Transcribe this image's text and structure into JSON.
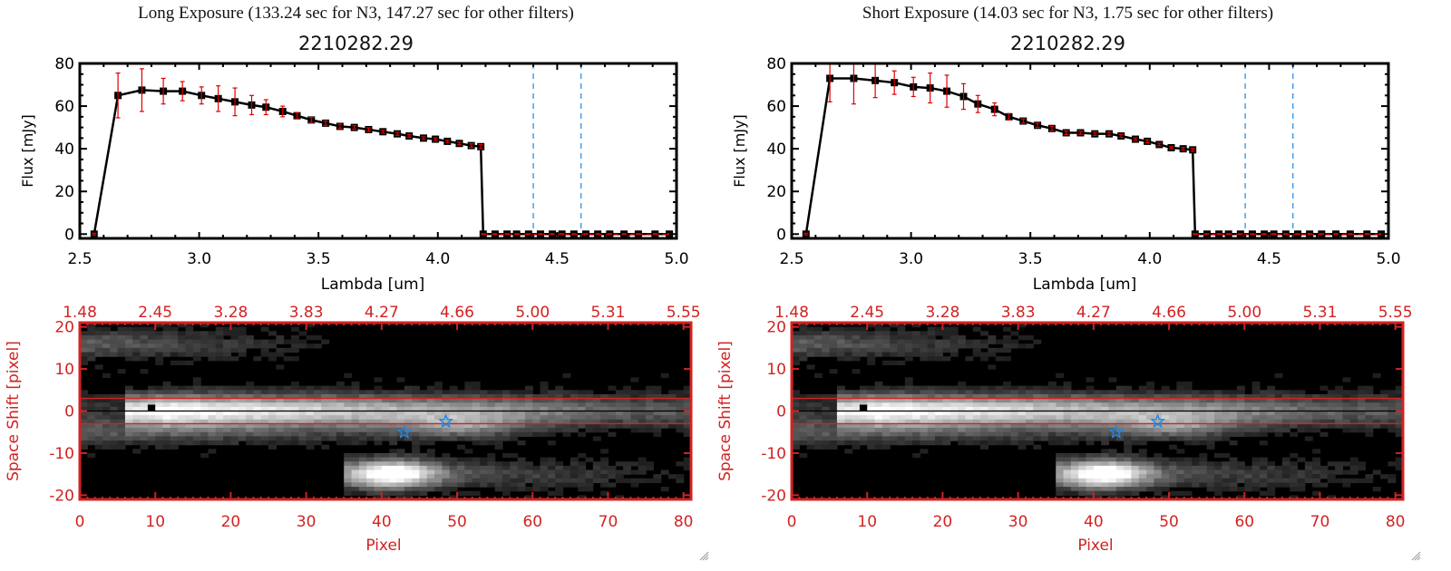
{
  "panels": [
    {
      "exposure_title": "Long Exposure (133.24 sec for N3, 147.27 sec for other filters)",
      "object_title": "2210282.29",
      "chart_data": [
        {
          "type": "line",
          "title": "2210282.29",
          "xlabel": "Lambda [um]",
          "ylabel": "Flux [mJy]",
          "xlim": [
            2.5,
            5.0
          ],
          "ylim": [
            -2,
            80
          ],
          "xticks": [
            "2.5",
            "3.0",
            "3.5",
            "4.0",
            "4.5",
            "5.0"
          ],
          "yticks": [
            "0",
            "20",
            "40",
            "60",
            "80"
          ],
          "xtick_values": [
            2.5,
            3.0,
            3.5,
            4.0,
            4.5,
            5.0
          ],
          "ytick_values": [
            0,
            20,
            40,
            60,
            80
          ],
          "grid": false,
          "series": [
            {
              "name": "flux",
              "color": "#000000",
              "marker": "square",
              "x": [
                2.56,
                2.66,
                2.76,
                2.85,
                2.93,
                3.01,
                3.08,
                3.15,
                3.22,
                3.28,
                3.35,
                3.41,
                3.47,
                3.53,
                3.59,
                3.65,
                3.71,
                3.77,
                3.83,
                3.88,
                3.94,
                3.99,
                4.04,
                4.09,
                4.14,
                4.18,
                4.19,
                4.24,
                4.29,
                4.33,
                4.38,
                4.43,
                4.48,
                4.52,
                4.57,
                4.62,
                4.67,
                4.72,
                4.78,
                4.84,
                4.91,
                4.97
              ],
              "y": [
                0,
                65,
                67.5,
                67,
                67,
                65,
                63.5,
                62,
                60.5,
                59.5,
                57.5,
                55.5,
                53.5,
                52,
                50.5,
                50,
                49,
                48,
                47,
                46,
                45,
                44.5,
                43.5,
                42.5,
                41.5,
                41,
                0,
                0,
                0,
                0,
                0,
                0,
                0,
                0,
                0,
                0,
                0,
                0,
                0,
                0,
                0,
                0
              ],
              "yerr": [
                0.4,
                10.5,
                10,
                6,
                4.5,
                4,
                6,
                6.5,
                4.5,
                3.5,
                2.5,
                1.5,
                1.2,
                1,
                1,
                0.8,
                0.8,
                0.7,
                0.7,
                0.6,
                0.6,
                0.6,
                0.5,
                0.6,
                0.8,
                0.9,
                0.2,
                0.2,
                0.2,
                0.2,
                0.2,
                0.2,
                0.2,
                0.2,
                0.2,
                0.2,
                0.2,
                0.2,
                0.2,
                0.2,
                0.2,
                0.2
              ],
              "errcolor": "#e00000"
            }
          ],
          "vlines": [
            {
              "x": 4.4,
              "color": "#1e88e5",
              "style": "dashed"
            },
            {
              "x": 4.6,
              "color": "#1e88e5",
              "style": "dashed"
            }
          ],
          "hlines": [
            {
              "y": 0,
              "color": "#e00000",
              "style": "dashed",
              "from": 4.19
            }
          ]
        },
        {
          "type": "heatmap",
          "xlabel": "Pixel",
          "ylabel": "Space Shift [pixel]",
          "xlim": [
            0,
            81
          ],
          "ylim": [
            -21,
            21
          ],
          "xticks": [
            "0",
            "10",
            "20",
            "30",
            "40",
            "50",
            "60",
            "70",
            "80"
          ],
          "yticks": [
            "-20",
            "-10",
            "0",
            "10",
            "20"
          ],
          "top_xticks": [
            "1.48",
            "2.45",
            "3.28",
            "3.83",
            "4.27",
            "4.66",
            "5.00",
            "5.31",
            "5.55"
          ],
          "axis_color": "#d32222",
          "aperture_lines": [
            3,
            -3
          ],
          "center_line": 0,
          "stars": [
            {
              "x": 43,
              "y": -5
            },
            {
              "x": 48.5,
              "y": -2.5
            }
          ],
          "star_color": "#1e88e5",
          "colormap": "grayscale"
        }
      ]
    },
    {
      "exposure_title": "Short Exposure (14.03 sec for N3, 1.75 sec for other filters)",
      "object_title": "2210282.29",
      "chart_data": [
        {
          "type": "line",
          "title": "2210282.29",
          "xlabel": "Lambda [um]",
          "ylabel": "Flux [mJy]",
          "xlim": [
            2.5,
            5.0
          ],
          "ylim": [
            -2,
            80
          ],
          "xticks": [
            "2.5",
            "3.0",
            "3.5",
            "4.0",
            "4.5",
            "5.0"
          ],
          "yticks": [
            "0",
            "20",
            "40",
            "60",
            "80"
          ],
          "xtick_values": [
            2.5,
            3.0,
            3.5,
            4.0,
            4.5,
            5.0
          ],
          "ytick_values": [
            0,
            20,
            40,
            60,
            80
          ],
          "grid": false,
          "series": [
            {
              "name": "flux",
              "color": "#000000",
              "marker": "square",
              "x": [
                2.56,
                2.66,
                2.76,
                2.85,
                2.93,
                3.01,
                3.08,
                3.15,
                3.22,
                3.28,
                3.35,
                3.41,
                3.47,
                3.53,
                3.59,
                3.65,
                3.71,
                3.77,
                3.83,
                3.88,
                3.94,
                3.99,
                4.04,
                4.09,
                4.14,
                4.18,
                4.19,
                4.24,
                4.29,
                4.33,
                4.38,
                4.43,
                4.48,
                4.52,
                4.57,
                4.62,
                4.67,
                4.72,
                4.78,
                4.84,
                4.91,
                4.97
              ],
              "y": [
                0,
                73,
                73,
                72,
                71,
                69,
                68.5,
                67,
                64.5,
                61,
                58.5,
                55,
                53,
                51,
                49.5,
                47.5,
                47.5,
                47,
                47,
                46,
                44.5,
                43.5,
                42,
                40.5,
                40,
                39.5,
                0,
                0,
                0,
                0,
                0,
                0,
                0,
                0,
                0,
                0,
                0,
                0,
                0,
                0,
                0,
                0
              ],
              "yerr": [
                0.4,
                11,
                12,
                8,
                5.5,
                4.5,
                7,
                7.5,
                6,
                4,
                3,
                1.5,
                1,
                1,
                1,
                0.8,
                0.7,
                0.7,
                0.7,
                0.7,
                0.6,
                0.7,
                0.6,
                0.5,
                0.6,
                0.7,
                0.2,
                0.2,
                0.2,
                0.2,
                0.2,
                0.2,
                0.2,
                0.2,
                0.2,
                0.2,
                0.2,
                0.2,
                0.2,
                0.2,
                0.2,
                0.2
              ],
              "errcolor": "#e00000"
            }
          ],
          "vlines": [
            {
              "x": 4.4,
              "color": "#1e88e5",
              "style": "dashed"
            },
            {
              "x": 4.6,
              "color": "#1e88e5",
              "style": "dashed"
            }
          ],
          "hlines": [
            {
              "y": 0,
              "color": "#e00000",
              "style": "dashed",
              "from": 4.19
            }
          ]
        },
        {
          "type": "heatmap",
          "xlabel": "Pixel",
          "ylabel": "Space Shift [pixel]",
          "xlim": [
            0,
            81
          ],
          "ylim": [
            -21,
            21
          ],
          "xticks": [
            "0",
            "10",
            "20",
            "30",
            "40",
            "50",
            "60",
            "70",
            "80"
          ],
          "yticks": [
            "-20",
            "-10",
            "0",
            "10",
            "20"
          ],
          "top_xticks": [
            "1.48",
            "2.45",
            "3.28",
            "3.83",
            "4.27",
            "4.66",
            "5.00",
            "5.31",
            "5.55"
          ],
          "axis_color": "#d32222",
          "aperture_lines": [
            3,
            -3
          ],
          "center_line": 0,
          "stars": [
            {
              "x": 43,
              "y": -5
            },
            {
              "x": 48.5,
              "y": -2.5
            }
          ],
          "star_color": "#1e88e5",
          "colormap": "grayscale"
        }
      ]
    }
  ]
}
